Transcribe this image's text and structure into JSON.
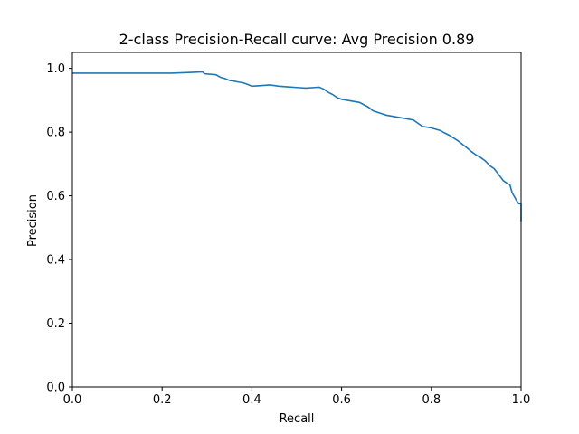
{
  "chart_data": {
    "type": "line",
    "title": "2-class Precision-Recall curve: Avg Precision 0.89",
    "xlabel": "Recall",
    "ylabel": "Precision",
    "xlim": [
      0.0,
      1.0
    ],
    "ylim": [
      0.0,
      1.05
    ],
    "grid": false,
    "x_ticks": [
      0.0,
      0.2,
      0.4,
      0.6,
      0.8,
      1.0
    ],
    "x_tick_labels": [
      "0.0",
      "0.2",
      "0.4",
      "0.6",
      "0.8",
      "1.0"
    ],
    "y_ticks": [
      0.0,
      0.2,
      0.4,
      0.6,
      0.8,
      1.0
    ],
    "y_tick_labels": [
      "0.0",
      "0.2",
      "0.4",
      "0.6",
      "0.8",
      "1.0"
    ],
    "line_color": "#1f77b4",
    "series": [
      {
        "x": [
          0.0,
          0.22,
          0.26,
          0.29,
          0.295,
          0.32,
          0.33,
          0.34,
          0.35,
          0.36,
          0.37,
          0.38,
          0.39,
          0.4,
          0.42,
          0.44,
          0.46,
          0.48,
          0.5,
          0.52,
          0.54,
          0.55,
          0.56,
          0.57,
          0.58,
          0.59,
          0.6,
          0.62,
          0.64,
          0.66,
          0.67,
          0.68,
          0.7,
          0.72,
          0.74,
          0.76,
          0.78,
          0.8,
          0.82,
          0.83,
          0.84,
          0.86,
          0.88,
          0.89,
          0.9,
          0.91,
          0.92,
          0.93,
          0.94,
          0.95,
          0.96,
          0.965,
          0.97,
          0.975,
          0.98,
          0.99,
          0.995,
          1.0,
          1.0
        ],
        "y": [
          0.985,
          0.985,
          0.987,
          0.989,
          0.983,
          0.98,
          0.972,
          0.968,
          0.962,
          0.96,
          0.957,
          0.955,
          0.95,
          0.944,
          0.946,
          0.948,
          0.944,
          0.942,
          0.94,
          0.938,
          0.94,
          0.941,
          0.935,
          0.925,
          0.918,
          0.908,
          0.903,
          0.898,
          0.893,
          0.878,
          0.867,
          0.862,
          0.853,
          0.848,
          0.843,
          0.838,
          0.818,
          0.813,
          0.805,
          0.797,
          0.79,
          0.772,
          0.75,
          0.738,
          0.728,
          0.72,
          0.71,
          0.695,
          0.685,
          0.667,
          0.648,
          0.643,
          0.638,
          0.635,
          0.61,
          0.585,
          0.575,
          0.575,
          0.52
        ]
      }
    ]
  }
}
